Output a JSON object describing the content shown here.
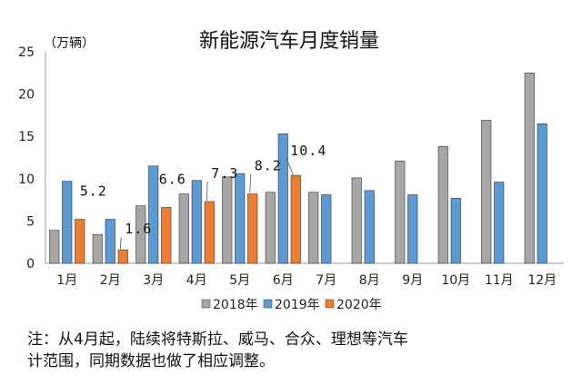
{
  "chart_data": {
    "type": "bar",
    "title": "新能源汽车月度销量",
    "ylabel": "（万辆）",
    "xlabel": "",
    "ylim": [
      0,
      25
    ],
    "yticks": [
      0,
      5,
      10,
      15,
      20,
      25
    ],
    "categories": [
      "1月",
      "2月",
      "3月",
      "4月",
      "5月",
      "6月",
      "7月",
      "8月",
      "9月",
      "10月",
      "11月",
      "12月"
    ],
    "series": [
      {
        "name": "2018年",
        "color": "#a6a6a6",
        "values": [
          3.9,
          3.4,
          6.8,
          8.2,
          10.2,
          8.4,
          8.4,
          10.1,
          12.1,
          13.8,
          16.9,
          22.5
        ]
      },
      {
        "name": "2019年",
        "color": "#5b9bd5",
        "values": [
          9.7,
          5.2,
          11.5,
          9.8,
          10.6,
          15.3,
          8.1,
          8.6,
          8.1,
          7.7,
          9.6,
          16.5
        ]
      },
      {
        "name": "2020年",
        "color": "#ed7d31",
        "values": [
          5.2,
          1.6,
          6.6,
          7.3,
          8.2,
          10.4,
          null,
          null,
          null,
          null,
          null,
          null
        ]
      }
    ],
    "data_labels": [
      "5.2",
      "1.6",
      "6.6",
      "7.3",
      "8.2",
      "10.4"
    ],
    "grid": false,
    "legend_position": "bottom"
  },
  "note": {
    "line1": "注：从4月起，陆续将特斯拉、威马、合众、理想等汽车",
    "line2": "计范围，同期数据也做了相应调整。"
  }
}
